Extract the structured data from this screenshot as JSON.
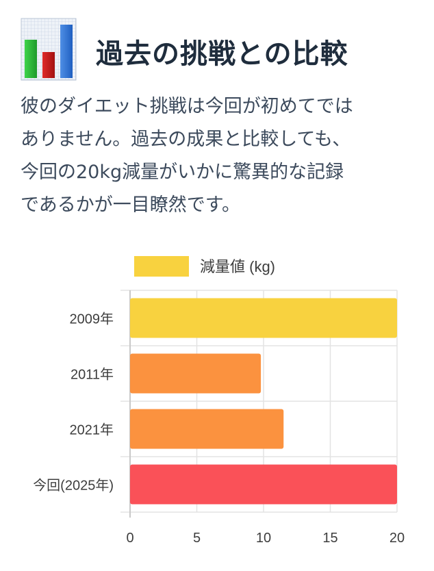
{
  "header": {
    "title": "過去の挑戦との比較",
    "icon": "bar-chart-icon"
  },
  "intro": {
    "text": "彼のダイエット挑戦は今回が初めてでは\nありません。過去の成果と比較しても、\n今回の20kg減量がいかに驚異的な記録\nであるかが一目瞭然です。"
  },
  "colors": {
    "yellow": "#f8d23f",
    "orange": "#fb923f",
    "red": "#fa5158",
    "grid": "#e3e3e3",
    "axis": "#c9c9c9",
    "text": "#3d3d3d"
  },
  "chart_data": {
    "type": "bar",
    "orientation": "horizontal",
    "categories": [
      "2009年",
      "2011年",
      "2021年",
      "今回(2025年)"
    ],
    "series": [
      {
        "name": "減量値 (kg)",
        "values": [
          20,
          9.8,
          11.5,
          20
        ],
        "colors": [
          "#f8d23f",
          "#fb923f",
          "#fb923f",
          "#fa5158"
        ]
      }
    ],
    "legend_color": "#f8d23f",
    "xlim": [
      0,
      20
    ],
    "xticks": [
      0,
      5,
      10,
      15,
      20
    ],
    "xlabel": "",
    "ylabel": "",
    "grid": true,
    "legend": "top"
  }
}
